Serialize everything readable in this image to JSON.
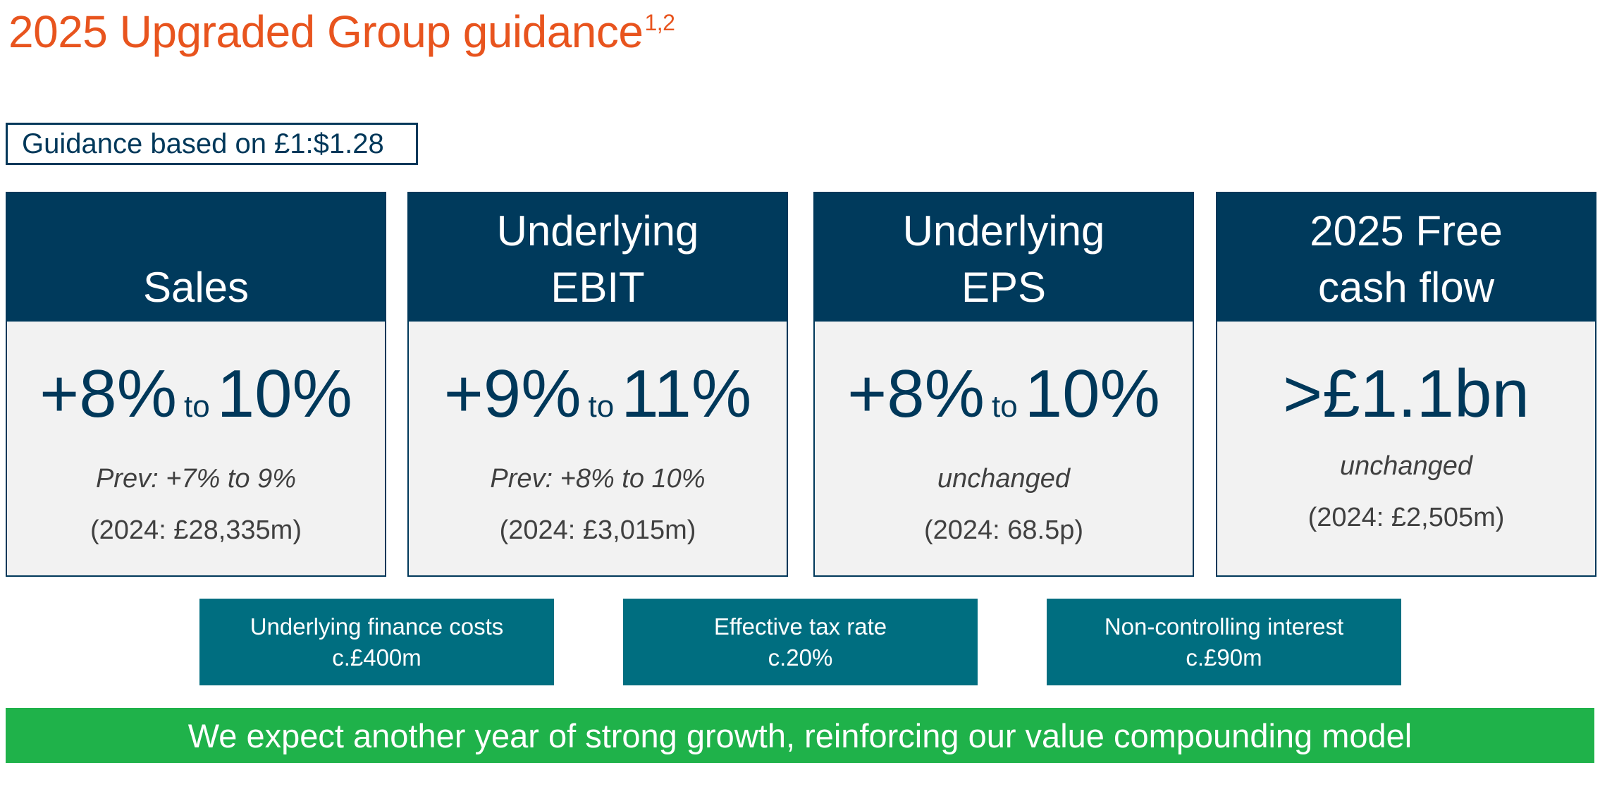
{
  "title": {
    "text": "2025 Upgraded Group guidance",
    "footnote": "1,2"
  },
  "fx_note": "Guidance based on £1:$1.28",
  "cards": [
    {
      "head_line1": "",
      "head_line2": "Sales",
      "from": "+8%",
      "to_word": "to",
      "to": "10%",
      "value": "",
      "prev": "Prev: +7% to 9%",
      "base": "(2024: £28,335m)"
    },
    {
      "head_line1": "Underlying",
      "head_line2": "EBIT",
      "from": "+9%",
      "to_word": "to",
      "to": "11%",
      "value": "",
      "prev": "Prev: +8% to 10%",
      "base": "(2024: £3,015m)"
    },
    {
      "head_line1": "Underlying",
      "head_line2": "EPS",
      "from": "+8%",
      "to_word": "to",
      "to": "10%",
      "value": "",
      "prev": "unchanged",
      "base": "(2024: 68.5p)"
    },
    {
      "head_line1": "2025 Free",
      "head_line2": "cash flow",
      "from": "",
      "to_word": "",
      "to": "",
      "value": ">£1.1bn",
      "prev": "unchanged",
      "base": "(2024: £2,505m)"
    }
  ],
  "sub_boxes": [
    {
      "label": "Underlying finance costs",
      "value": "c.£400m"
    },
    {
      "label": "Effective tax rate",
      "value": "c.20%"
    },
    {
      "label": "Non-controlling interest",
      "value": "c.£90m"
    }
  ],
  "banner": "We expect another year of strong growth, reinforcing our value compounding model",
  "colors": {
    "title": "#e8541e",
    "navy": "#003a5c",
    "teal": "#006e80",
    "green": "#1fb24a",
    "card_bg": "#f2f2f2"
  }
}
